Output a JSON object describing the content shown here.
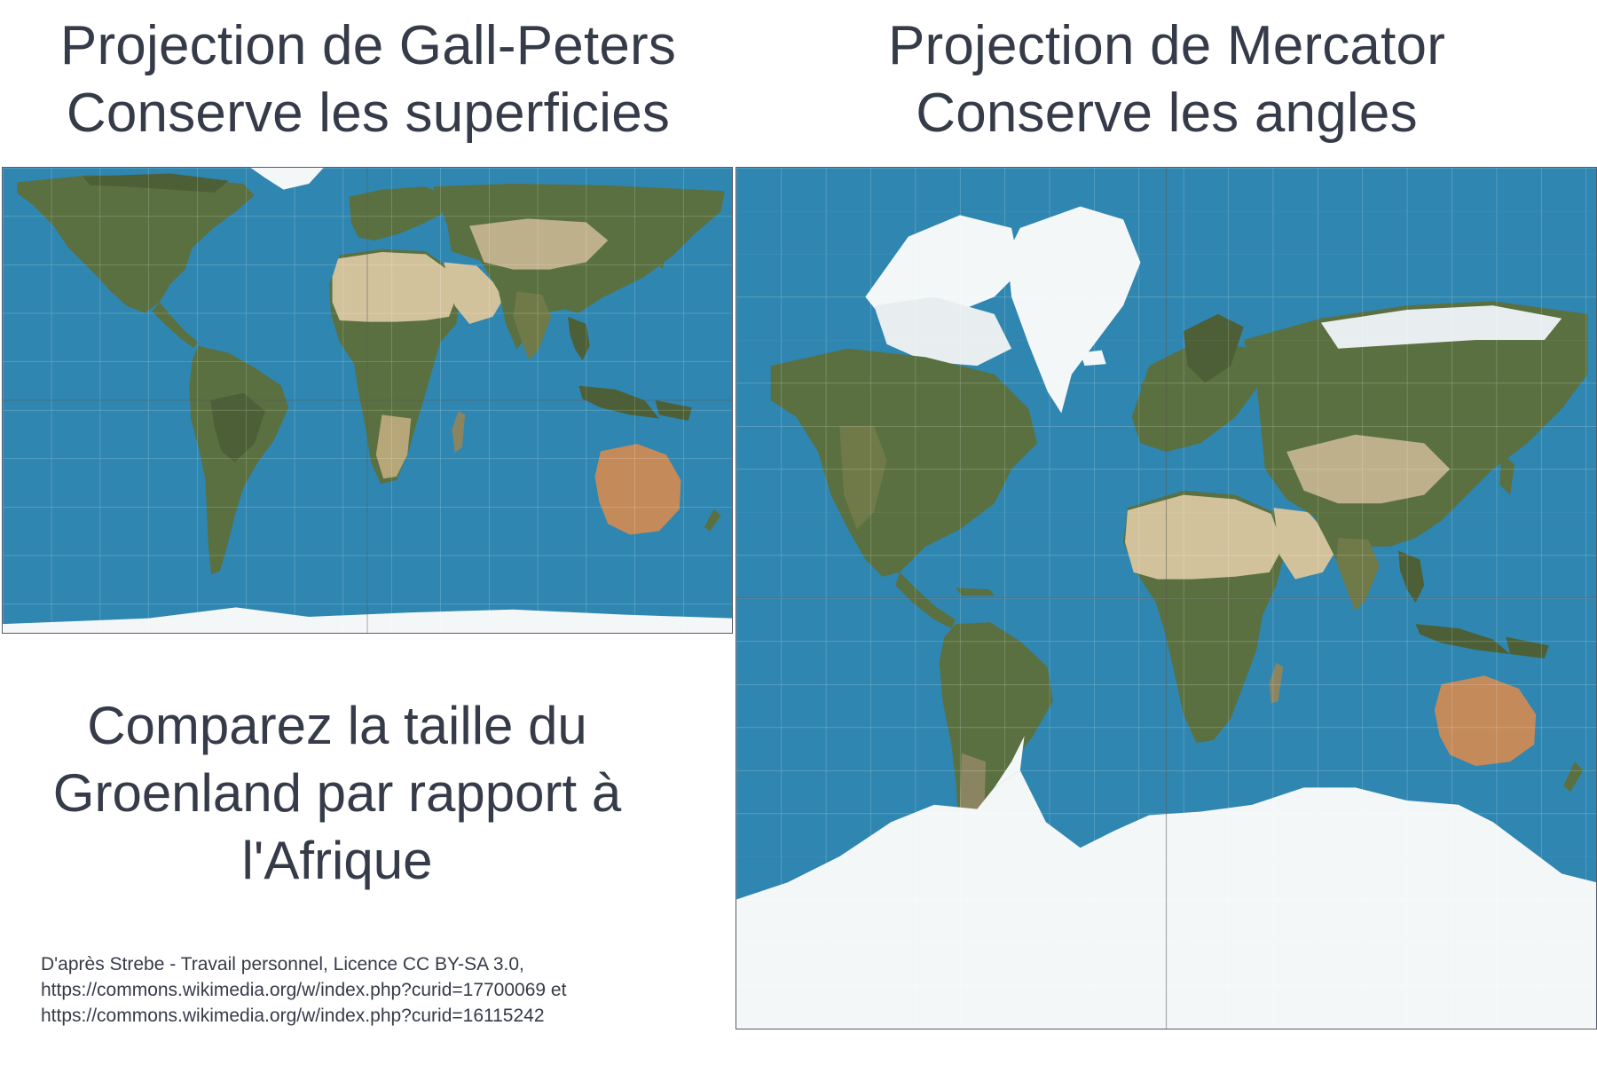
{
  "gall_peters": {
    "title_line1": "Projection de Gall-Peters",
    "title_line2": "Conserve les superficies"
  },
  "mercator": {
    "title_line1": "Projection de Mercator",
    "title_line2": "Conserve les angles"
  },
  "comparison": {
    "line1": "Comparez la taille du",
    "line2": "Groenland par rapport à",
    "line3": "l'Afrique"
  },
  "credit": {
    "line1": "D'après Strebe - Travail personnel, Licence CC BY-SA 3.0,",
    "line2": "https://commons.wikimedia.org/w/index.php?curid=17700069 et",
    "line3": "https://commons.wikimedia.org/w/index.php?curid=16115242"
  },
  "colors": {
    "ocean": "#2f86b0",
    "shallow": "#3aa5cf",
    "land_green": "#5a7040",
    "land_dark": "#4c5f36",
    "desert": "#d2c29c",
    "outback": "#c48a5a",
    "ice": "#f4f7f8",
    "text": "#353b48"
  }
}
